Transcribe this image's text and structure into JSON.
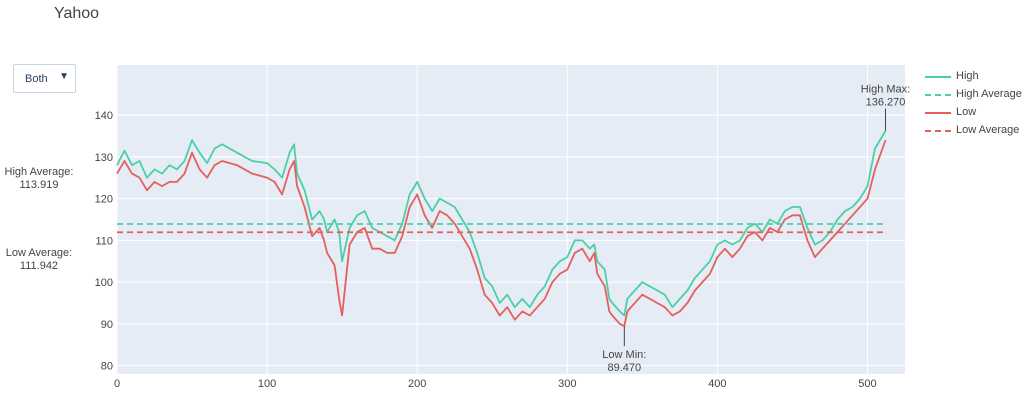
{
  "title": "Yahoo",
  "dropdown": {
    "selected": "Both",
    "arrow": "▼"
  },
  "colors": {
    "high": "#4ccfa4",
    "low": "#e4605a",
    "plot_bg": "#e5ecf6",
    "grid": "#ffffff"
  },
  "side_annotations": {
    "high_average": {
      "label": "High Average:",
      "value": "113.919"
    },
    "low_average": {
      "label": "Low Average:",
      "value": "111.942"
    }
  },
  "chart_data": {
    "type": "line",
    "title": "Yahoo",
    "xlim": [
      0,
      525
    ],
    "ylim": [
      78,
      152
    ],
    "x_ticks": [
      0,
      100,
      200,
      300,
      400,
      500
    ],
    "y_ticks": [
      80,
      90,
      100,
      110,
      120,
      130,
      140
    ],
    "grid": true,
    "legend_position": "right",
    "series": [
      {
        "name": "High",
        "color": "#4ccfa4",
        "dash": "solid",
        "points": [
          [
            0,
            128
          ],
          [
            5,
            131.5
          ],
          [
            10,
            128
          ],
          [
            15,
            129
          ],
          [
            20,
            125
          ],
          [
            25,
            127
          ],
          [
            30,
            126
          ],
          [
            35,
            128
          ],
          [
            40,
            127
          ],
          [
            45,
            129
          ],
          [
            50,
            134
          ],
          [
            55,
            131
          ],
          [
            60,
            128.5
          ],
          [
            65,
            132
          ],
          [
            70,
            133
          ],
          [
            80,
            131
          ],
          [
            90,
            129
          ],
          [
            100,
            128.5
          ],
          [
            105,
            127
          ],
          [
            110,
            125
          ],
          [
            115,
            131
          ],
          [
            118,
            133
          ],
          [
            120,
            126
          ],
          [
            125,
            122
          ],
          [
            130,
            115
          ],
          [
            135,
            117
          ],
          [
            138,
            115
          ],
          [
            140,
            112
          ],
          [
            145,
            115
          ],
          [
            148,
            112
          ],
          [
            150,
            105
          ],
          [
            155,
            113
          ],
          [
            160,
            116
          ],
          [
            165,
            117
          ],
          [
            170,
            113
          ],
          [
            175,
            112
          ],
          [
            180,
            111
          ],
          [
            185,
            110
          ],
          [
            190,
            114
          ],
          [
            195,
            121
          ],
          [
            200,
            124
          ],
          [
            205,
            120
          ],
          [
            210,
            117
          ],
          [
            215,
            120
          ],
          [
            220,
            119
          ],
          [
            225,
            118
          ],
          [
            230,
            115
          ],
          [
            235,
            112
          ],
          [
            240,
            107
          ],
          [
            245,
            101
          ],
          [
            250,
            99
          ],
          [
            255,
            95
          ],
          [
            260,
            97
          ],
          [
            265,
            94
          ],
          [
            270,
            96
          ],
          [
            275,
            94
          ],
          [
            280,
            97
          ],
          [
            285,
            99
          ],
          [
            290,
            103
          ],
          [
            295,
            105
          ],
          [
            300,
            106
          ],
          [
            305,
            110
          ],
          [
            310,
            110
          ],
          [
            315,
            108
          ],
          [
            318,
            109
          ],
          [
            320,
            105
          ],
          [
            325,
            103
          ],
          [
            328,
            96
          ],
          [
            330,
            95
          ],
          [
            335,
            93
          ],
          [
            338,
            92
          ],
          [
            340,
            96
          ],
          [
            345,
            98
          ],
          [
            350,
            100
          ],
          [
            355,
            99
          ],
          [
            360,
            98
          ],
          [
            365,
            97
          ],
          [
            370,
            94
          ],
          [
            375,
            96
          ],
          [
            380,
            98
          ],
          [
            385,
            101
          ],
          [
            390,
            103
          ],
          [
            395,
            105
          ],
          [
            400,
            109
          ],
          [
            405,
            110
          ],
          [
            410,
            109
          ],
          [
            415,
            110
          ],
          [
            420,
            113
          ],
          [
            425,
            114
          ],
          [
            430,
            112
          ],
          [
            435,
            115
          ],
          [
            440,
            114
          ],
          [
            445,
            117
          ],
          [
            450,
            118
          ],
          [
            455,
            118
          ],
          [
            460,
            113
          ],
          [
            465,
            109
          ],
          [
            470,
            110
          ],
          [
            475,
            112
          ],
          [
            480,
            115
          ],
          [
            485,
            117
          ],
          [
            490,
            118
          ],
          [
            495,
            120
          ],
          [
            500,
            123
          ],
          [
            505,
            132
          ],
          [
            510,
            135
          ],
          [
            512,
            136.27
          ]
        ]
      },
      {
        "name": "Low",
        "color": "#e4605a",
        "dash": "solid",
        "points": [
          [
            0,
            126
          ],
          [
            5,
            129
          ],
          [
            10,
            126
          ],
          [
            15,
            125
          ],
          [
            20,
            122
          ],
          [
            25,
            124
          ],
          [
            30,
            123
          ],
          [
            35,
            124
          ],
          [
            40,
            124
          ],
          [
            45,
            126
          ],
          [
            50,
            131
          ],
          [
            55,
            127
          ],
          [
            60,
            125
          ],
          [
            65,
            128
          ],
          [
            70,
            129
          ],
          [
            80,
            128
          ],
          [
            90,
            126
          ],
          [
            100,
            125
          ],
          [
            105,
            124
          ],
          [
            110,
            121
          ],
          [
            115,
            127
          ],
          [
            118,
            129
          ],
          [
            120,
            123
          ],
          [
            125,
            118
          ],
          [
            130,
            111
          ],
          [
            135,
            113
          ],
          [
            138,
            110
          ],
          [
            140,
            107
          ],
          [
            145,
            104
          ],
          [
            148,
            96
          ],
          [
            150,
            92
          ],
          [
            155,
            109
          ],
          [
            160,
            112
          ],
          [
            165,
            113
          ],
          [
            170,
            108
          ],
          [
            175,
            108
          ],
          [
            180,
            107
          ],
          [
            185,
            107
          ],
          [
            190,
            111
          ],
          [
            195,
            118
          ],
          [
            200,
            121
          ],
          [
            205,
            116
          ],
          [
            210,
            113
          ],
          [
            215,
            117
          ],
          [
            220,
            116
          ],
          [
            225,
            114
          ],
          [
            230,
            111
          ],
          [
            235,
            108
          ],
          [
            240,
            103
          ],
          [
            245,
            97
          ],
          [
            250,
            95
          ],
          [
            255,
            92
          ],
          [
            260,
            94
          ],
          [
            265,
            91
          ],
          [
            270,
            93
          ],
          [
            275,
            92
          ],
          [
            280,
            94
          ],
          [
            285,
            96
          ],
          [
            290,
            100
          ],
          [
            295,
            102
          ],
          [
            300,
            103
          ],
          [
            305,
            107
          ],
          [
            310,
            108
          ],
          [
            315,
            105
          ],
          [
            318,
            107
          ],
          [
            320,
            102
          ],
          [
            325,
            99
          ],
          [
            328,
            93
          ],
          [
            330,
            92
          ],
          [
            335,
            90
          ],
          [
            338,
            89.47
          ],
          [
            340,
            93
          ],
          [
            345,
            95
          ],
          [
            350,
            97
          ],
          [
            355,
            96
          ],
          [
            360,
            95
          ],
          [
            365,
            94
          ],
          [
            370,
            92
          ],
          [
            375,
            93
          ],
          [
            380,
            95
          ],
          [
            385,
            98
          ],
          [
            390,
            100
          ],
          [
            395,
            102
          ],
          [
            400,
            106
          ],
          [
            405,
            108
          ],
          [
            410,
            106
          ],
          [
            415,
            108
          ],
          [
            420,
            111
          ],
          [
            425,
            112
          ],
          [
            430,
            110
          ],
          [
            435,
            113
          ],
          [
            440,
            112
          ],
          [
            445,
            115
          ],
          [
            450,
            116
          ],
          [
            455,
            116
          ],
          [
            460,
            110
          ],
          [
            465,
            106
          ],
          [
            470,
            108
          ],
          [
            475,
            110
          ],
          [
            480,
            112
          ],
          [
            485,
            114
          ],
          [
            490,
            116
          ],
          [
            495,
            118
          ],
          [
            500,
            120
          ],
          [
            505,
            127
          ],
          [
            510,
            132
          ],
          [
            512,
            134
          ]
        ]
      },
      {
        "name": "High Average",
        "color": "#4ccfa4",
        "dash": "dashed",
        "y": 113.919
      },
      {
        "name": "Low Average",
        "color": "#e4605a",
        "dash": "dashed",
        "y": 111.942
      }
    ],
    "annotations": [
      {
        "label": "High Max:",
        "value": "136.270",
        "x": 512,
        "y": 136.27
      },
      {
        "label": "Low Min:",
        "value": "89.470",
        "x": 338,
        "y": 89.47
      }
    ]
  }
}
